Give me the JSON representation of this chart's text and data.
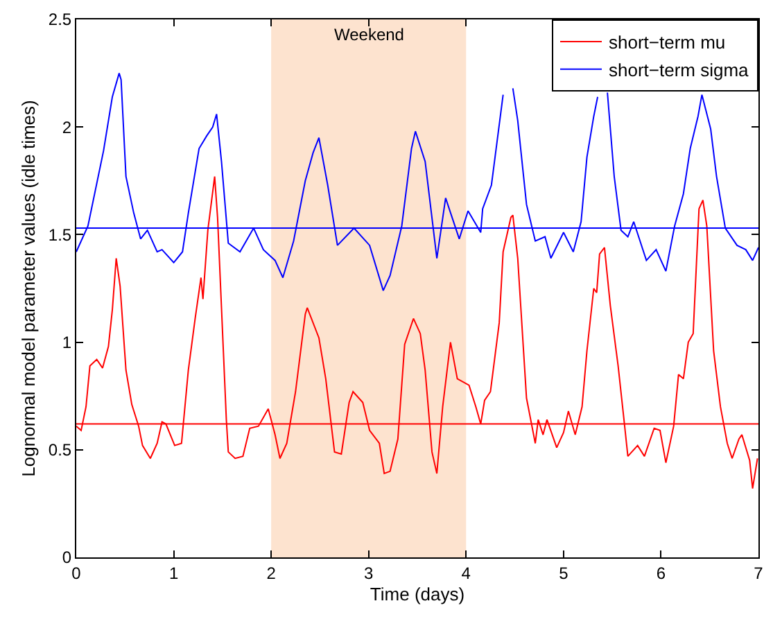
{
  "chart_data": {
    "type": "line",
    "xlabel": "Time (days)",
    "ylabel": "Lognormal model parameter values (idle times)",
    "xlim": [
      0,
      7
    ],
    "ylim": [
      0,
      2.5
    ],
    "xticks": [
      0,
      1,
      2,
      3,
      4,
      5,
      6,
      7
    ],
    "yticks": [
      0,
      0.5,
      1,
      1.5,
      2,
      2.5
    ],
    "legend": "top right",
    "series": [
      {
        "name": "short−term mu",
        "color": "#ff0000",
        "x": [
          0,
          0.05,
          0.1,
          0.14,
          0.21,
          0.27,
          0.33,
          0.37,
          0.41,
          0.45,
          0.51,
          0.57,
          0.64,
          0.68,
          0.76,
          0.83,
          0.88,
          0.92,
          1.01,
          1.08,
          1.15,
          1.22,
          1.28,
          1.3,
          1.35,
          1.42,
          1.45,
          1.54,
          1.56,
          1.63,
          1.71,
          1.78,
          1.87,
          1.97,
          2.04,
          2.09,
          2.16,
          2.25,
          2.35,
          2.37,
          2.49,
          2.56,
          2.65,
          2.72,
          2.8,
          2.84,
          2.94,
          3.01,
          3.11,
          3.16,
          3.22,
          3.3,
          3.37,
          3.46,
          3.53,
          3.58,
          3.65,
          3.7,
          3.76,
          3.84,
          3.91,
          4.03,
          4.1,
          4.15,
          4.19,
          4.25,
          4.34,
          4.38,
          4.46,
          4.48,
          4.53,
          4.62,
          4.71,
          4.74,
          4.79,
          4.83,
          4.93,
          5,
          5.05,
          5.12,
          5.19,
          5.24,
          5.31,
          5.34,
          5.37,
          5.42,
          5.48,
          5.56,
          5.62,
          5.66,
          5.76,
          5.83,
          5.93,
          5.99,
          6.05,
          6.13,
          6.18,
          6.23,
          6.28,
          6.33,
          6.39,
          6.43,
          6.47,
          6.54,
          6.61,
          6.68,
          6.73,
          6.8,
          6.83,
          6.91,
          6.94,
          6.99
        ],
        "values": [
          0.61,
          0.59,
          0.7,
          0.89,
          0.92,
          0.88,
          0.98,
          1.15,
          1.39,
          1.26,
          0.87,
          0.71,
          0.61,
          0.52,
          0.46,
          0.53,
          0.63,
          0.62,
          0.52,
          0.53,
          0.87,
          1.11,
          1.3,
          1.2,
          1.52,
          1.77,
          1.58,
          0.64,
          0.49,
          0.46,
          0.47,
          0.6,
          0.61,
          0.69,
          0.57,
          0.46,
          0.53,
          0.77,
          1.13,
          1.16,
          1.02,
          0.83,
          0.49,
          0.48,
          0.72,
          0.77,
          0.72,
          0.59,
          0.53,
          0.39,
          0.4,
          0.55,
          0.99,
          1.11,
          1.04,
          0.87,
          0.49,
          0.39,
          0.7,
          1,
          0.83,
          0.8,
          0.7,
          0.62,
          0.73,
          0.77,
          1.09,
          1.42,
          1.58,
          1.59,
          1.39,
          0.74,
          0.53,
          0.64,
          0.57,
          0.64,
          0.51,
          0.58,
          0.68,
          0.57,
          0.7,
          0.96,
          1.25,
          1.23,
          1.41,
          1.44,
          1.17,
          0.89,
          0.64,
          0.47,
          0.52,
          0.47,
          0.6,
          0.59,
          0.44,
          0.61,
          0.85,
          0.83,
          1,
          1.04,
          1.62,
          1.66,
          1.54,
          0.96,
          0.7,
          0.53,
          0.46,
          0.55,
          0.57,
          0.45,
          0.32,
          0.46
        ]
      },
      {
        "name": "short−term sigma",
        "color": "#0000ff",
        "x": [
          0,
          0.12,
          0.28,
          0.37,
          0.44,
          0.46,
          0.51,
          0.59,
          0.66,
          0.73,
          0.83,
          0.88,
          1,
          1.09,
          1.15,
          1.26,
          1.34,
          1.4,
          1.44,
          1.49,
          1.56,
          1.68,
          1.82,
          1.92,
          2.04,
          2.12,
          2.23,
          2.35,
          2.43,
          2.49,
          2.58,
          2.68,
          2.85,
          3.01,
          3.15,
          3.22,
          3.34,
          3.44,
          3.48,
          3.58,
          3.7,
          3.79,
          3.93,
          4.02,
          4.15,
          4.17,
          4.26,
          4.38,
          4.44,
          4.48,
          4.53,
          4.62,
          4.71,
          4.81,
          4.87,
          5,
          5.1,
          5.18,
          5.24,
          5.31,
          5.35,
          5.4,
          5.45,
          5.52,
          5.59,
          5.66,
          5.72,
          5.85,
          5.95,
          6.05,
          6.14,
          6.23,
          6.3,
          6.38,
          6.42,
          6.51,
          6.57,
          6.66,
          6.78,
          6.87,
          6.94,
          7
        ],
        "values": [
          1.42,
          1.54,
          1.89,
          2.14,
          2.25,
          2.22,
          1.77,
          1.6,
          1.48,
          1.52,
          1.42,
          1.43,
          1.37,
          1.42,
          1.6,
          1.9,
          1.96,
          2,
          2.06,
          1.84,
          1.46,
          1.42,
          1.53,
          1.43,
          1.38,
          1.3,
          1.47,
          1.75,
          1.88,
          1.95,
          1.73,
          1.45,
          1.53,
          1.45,
          1.24,
          1.31,
          1.54,
          1.9,
          1.98,
          1.84,
          1.39,
          1.67,
          1.48,
          1.61,
          1.51,
          1.62,
          1.73,
          2.15,
          null,
          2.18,
          2.03,
          1.64,
          1.47,
          1.49,
          1.39,
          1.51,
          1.42,
          1.56,
          1.86,
          2.05,
          2.14,
          null,
          2.16,
          1.77,
          1.52,
          1.49,
          1.56,
          1.38,
          1.43,
          1.33,
          1.54,
          1.69,
          1.9,
          2.05,
          2.15,
          1.99,
          1.77,
          1.53,
          1.45,
          1.43,
          1.38,
          1.44
        ]
      }
    ],
    "ref_lines": [
      {
        "axis": "y",
        "value": 1.53,
        "color": "#0000ff"
      },
      {
        "axis": "y",
        "value": 0.62,
        "color": "#ff0000"
      }
    ],
    "bands": [
      {
        "axis": "x",
        "from": 2,
        "to": 4,
        "label": "Weekend",
        "color": "#fde3cf"
      }
    ]
  }
}
